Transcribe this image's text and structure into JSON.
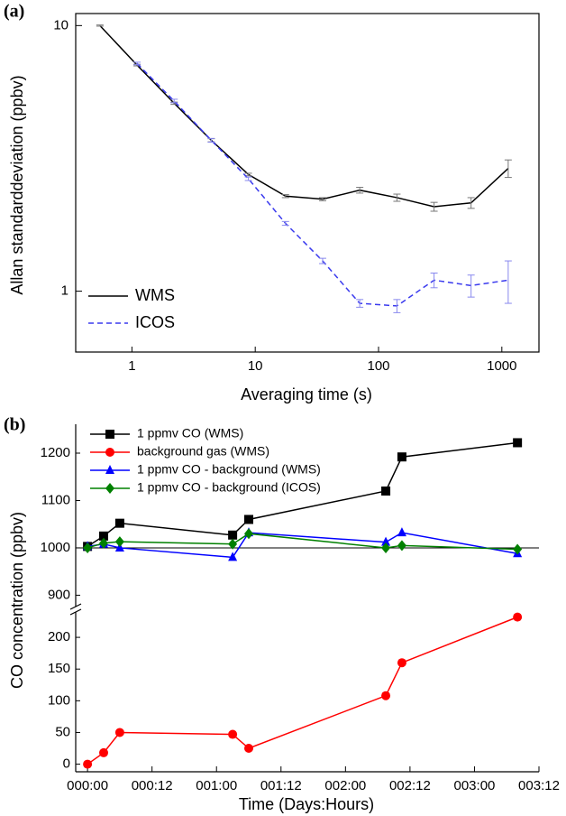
{
  "chart_data": [
    {
      "type": "line",
      "panel": "(a)",
      "xlabel": "Averaging time (s)",
      "ylabel": "Allan standarddeviation (ppbv)",
      "xscale": "log",
      "yscale": "log",
      "xlim": [
        0.35,
        2000
      ],
      "ylim": [
        0.59,
        11.1
      ],
      "xticks": [
        1,
        10,
        100,
        1000
      ],
      "yticks": [
        1,
        10
      ],
      "legend": "lower left",
      "series": [
        {
          "name": "WMS",
          "color": "#000000",
          "dash": "solid",
          "x": [
            0.55,
            1.1,
            2.2,
            4.4,
            8.8,
            17.6,
            35.2,
            70.4,
            141,
            282,
            563,
            1126
          ],
          "values": [
            10.0,
            7.1,
            5.1,
            3.7,
            2.75,
            2.28,
            2.22,
            2.4,
            2.25,
            2.08,
            2.15,
            2.9
          ],
          "errors": [
            0.05,
            0.05,
            0.05,
            0.05,
            0.03,
            0.03,
            0.03,
            0.06,
            0.07,
            0.08,
            0.1,
            0.22
          ]
        },
        {
          "name": "ICOS",
          "color": "#3a3aee",
          "dash": "dashed",
          "x": [
            1.1,
            2.2,
            4.4,
            8.8,
            17.6,
            35.2,
            70.4,
            141,
            282,
            563,
            1126
          ],
          "values": [
            7.2,
            5.2,
            3.7,
            2.65,
            1.8,
            1.3,
            0.9,
            0.88,
            1.1,
            1.05,
            1.1
          ],
          "errors": [
            0.08,
            0.08,
            0.06,
            0.04,
            0.03,
            0.03,
            0.03,
            0.05,
            0.07,
            0.1,
            0.2
          ]
        }
      ]
    },
    {
      "type": "line",
      "panel": "(b)",
      "xlabel": "Time (Days:Hours)",
      "ylabel": "CO concentration (ppbv)",
      "xlim": [
        -2.2,
        84
      ],
      "xticks": [
        {
          "value": 0,
          "label": "000:00"
        },
        {
          "value": 12,
          "label": "000:12"
        },
        {
          "value": 24,
          "label": "001:00"
        },
        {
          "value": 36,
          "label": "001:12"
        },
        {
          "value": 48,
          "label": "002:00"
        },
        {
          "value": 60,
          "label": "002:12"
        },
        {
          "value": 72,
          "label": "003:00"
        },
        {
          "value": 84,
          "label": "003:12"
        }
      ],
      "y_segments": [
        {
          "ylim": [
            -12,
            240
          ],
          "yticks": [
            0,
            50,
            100,
            150,
            200
          ]
        },
        {
          "ylim": [
            876,
            1261
          ],
          "yticks": [
            900,
            1000,
            1100,
            1200
          ]
        }
      ],
      "reference_line": 1000,
      "legend": "upper left",
      "series": [
        {
          "name": "1 ppmv CO (WMS)",
          "color": "#000000",
          "marker": "square",
          "x": [
            0,
            3,
            6,
            27,
            30,
            55.5,
            58.5,
            80
          ],
          "values": [
            1003,
            1025,
            1052,
            1027,
            1060,
            1120,
            1192,
            1222
          ]
        },
        {
          "name": "background gas (WMS)",
          "color": "#ff0000",
          "marker": "circle",
          "x": [
            0,
            3,
            6,
            27,
            30,
            55.5,
            58.5,
            80
          ],
          "values": [
            0,
            18,
            50,
            47,
            25,
            108,
            160,
            232
          ]
        },
        {
          "name": "1 ppmv CO - background (WMS)",
          "color": "#0000ff",
          "marker": "triangle",
          "x": [
            0,
            3,
            6,
            27,
            30,
            55.5,
            58.5,
            80
          ],
          "values": [
            1003,
            1008,
            1000,
            980,
            1032,
            1012,
            1032,
            988
          ]
        },
        {
          "name": "1 ppmv CO - background (ICOS)",
          "color": "#008000",
          "marker": "diamond",
          "x": [
            0,
            3,
            6,
            27,
            30,
            55.5,
            58.5,
            80
          ],
          "values": [
            1000,
            1010,
            1013,
            1008,
            1030,
            1000,
            1005,
            997
          ]
        }
      ]
    }
  ]
}
